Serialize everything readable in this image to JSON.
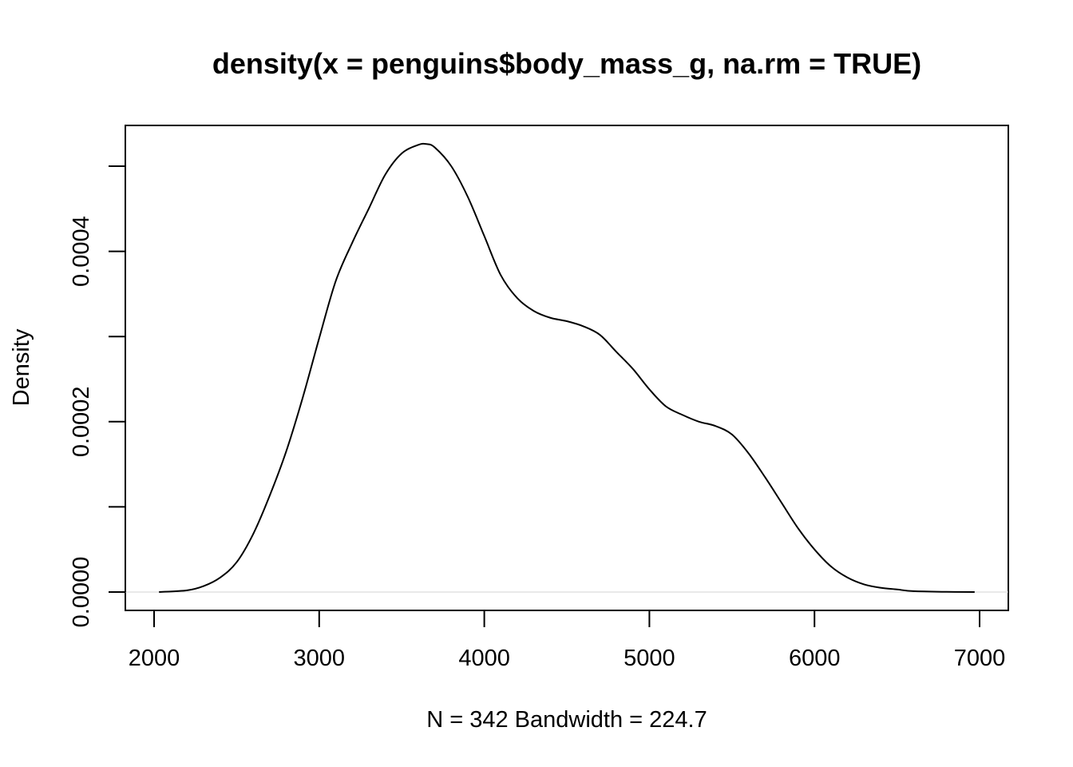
{
  "chart_data": {
    "type": "line",
    "title": "density(x = penguins$body_mass_g, na.rm = TRUE)",
    "xlabel": "N = 342   Bandwidth = 224.7",
    "ylabel": "Density",
    "xlim": [
      2000,
      7000
    ],
    "ylim": [
      0,
      0.0005
    ],
    "x_ticks": [
      2000,
      3000,
      4000,
      5000,
      6000,
      7000
    ],
    "x_tick_labels": [
      "2000",
      "3000",
      "4000",
      "5000",
      "6000",
      "7000"
    ],
    "y_ticks": [
      0,
      0.0001,
      0.0002,
      0.0003,
      0.0004,
      0.0005
    ],
    "y_tick_labels": [
      "0.0000",
      "",
      "0.0002",
      "",
      "0.0004",
      ""
    ],
    "baseline": 0,
    "grid": false,
    "line_color": "#000000",
    "baseline_color": "#d3d3d3",
    "series": [
      {
        "x": [
          2030,
          2200,
          2300,
          2400,
          2500,
          2600,
          2700,
          2800,
          2900,
          3000,
          3100,
          3200,
          3300,
          3400,
          3500,
          3600,
          3650,
          3700,
          3800,
          3900,
          4000,
          4100,
          4200,
          4300,
          4400,
          4500,
          4600,
          4700,
          4800,
          4900,
          5000,
          5100,
          5200,
          5300,
          5400,
          5500,
          5600,
          5700,
          5800,
          5900,
          6000,
          6100,
          6200,
          6300,
          6400,
          6500,
          6600,
          6800,
          6970
        ],
        "y": [
          0.0,
          2e-06,
          7e-06,
          1.7e-05,
          3.5e-05,
          6.8e-05,
          0.000113,
          0.000165,
          0.000228,
          0.000298,
          0.000365,
          0.00041,
          0.00045,
          0.00049,
          0.000515,
          0.000525,
          0.000526,
          0.000522,
          0.0005,
          0.000464,
          0.000418,
          0.000372,
          0.000345,
          0.00033,
          0.000322,
          0.000318,
          0.000312,
          0.000302,
          0.000282,
          0.000262,
          0.000238,
          0.000218,
          0.000208,
          0.0002,
          0.000195,
          0.000185,
          0.000163,
          0.000135,
          0.000105,
          7.5e-05,
          5e-05,
          3e-05,
          1.7e-05,
          9e-06,
          5e-06,
          3e-06,
          1e-06,
          2e-07,
          0.0
        ]
      }
    ]
  }
}
